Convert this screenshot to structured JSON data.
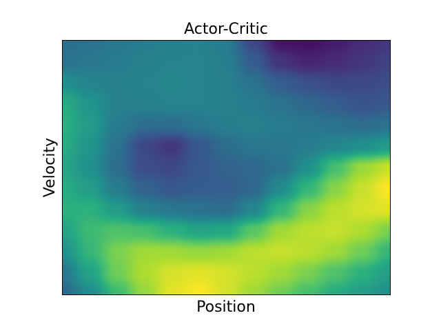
{
  "chart_data": {
    "type": "heatmap",
    "title": "Actor-Critic",
    "xlabel": "Position",
    "ylabel": "Velocity",
    "colormap": "viridis",
    "colorbar": false,
    "x_ticks": [],
    "y_ticks": [],
    "grid": false,
    "legend": "none",
    "value_range": [
      0,
      1
    ],
    "x_range": [
      0,
      1
    ],
    "y_range": [
      0,
      1
    ],
    "x": [
      0.0,
      0.0833,
      0.1667,
      0.25,
      0.3333,
      0.4167,
      0.5,
      0.5833,
      0.6667,
      0.75,
      0.8333,
      0.9167,
      1.0
    ],
    "y": [
      1.0,
      0.9167,
      0.8333,
      0.75,
      0.6667,
      0.5833,
      0.5,
      0.4167,
      0.3333,
      0.25,
      0.1667,
      0.0833,
      0.0
    ],
    "z": [
      [
        0.36,
        0.38,
        0.4,
        0.42,
        0.44,
        0.45,
        0.42,
        0.22,
        0.05,
        0.04,
        0.08,
        0.12,
        0.16
      ],
      [
        0.38,
        0.4,
        0.42,
        0.44,
        0.45,
        0.45,
        0.43,
        0.3,
        0.15,
        0.1,
        0.12,
        0.16,
        0.2
      ],
      [
        0.5,
        0.45,
        0.44,
        0.45,
        0.46,
        0.45,
        0.44,
        0.38,
        0.3,
        0.25,
        0.22,
        0.22,
        0.24
      ],
      [
        0.62,
        0.52,
        0.44,
        0.44,
        0.45,
        0.45,
        0.44,
        0.42,
        0.38,
        0.34,
        0.3,
        0.26,
        0.28
      ],
      [
        0.64,
        0.55,
        0.42,
        0.36,
        0.36,
        0.4,
        0.43,
        0.44,
        0.42,
        0.4,
        0.38,
        0.36,
        0.38
      ],
      [
        0.62,
        0.52,
        0.38,
        0.22,
        0.16,
        0.28,
        0.36,
        0.4,
        0.4,
        0.42,
        0.46,
        0.5,
        0.55
      ],
      [
        0.6,
        0.5,
        0.36,
        0.24,
        0.22,
        0.28,
        0.32,
        0.34,
        0.38,
        0.5,
        0.7,
        0.85,
        0.92
      ],
      [
        0.62,
        0.56,
        0.42,
        0.32,
        0.28,
        0.3,
        0.3,
        0.34,
        0.48,
        0.66,
        0.82,
        0.92,
        1.0
      ],
      [
        0.64,
        0.64,
        0.55,
        0.44,
        0.4,
        0.38,
        0.36,
        0.46,
        0.66,
        0.82,
        0.9,
        0.94,
        0.96
      ],
      [
        0.58,
        0.68,
        0.72,
        0.7,
        0.64,
        0.58,
        0.6,
        0.74,
        0.86,
        0.9,
        0.92,
        0.88,
        0.8
      ],
      [
        0.5,
        0.66,
        0.8,
        0.86,
        0.86,
        0.84,
        0.86,
        0.9,
        0.92,
        0.9,
        0.86,
        0.78,
        0.66
      ],
      [
        0.4,
        0.58,
        0.78,
        0.88,
        0.94,
        0.96,
        0.94,
        0.9,
        0.86,
        0.8,
        0.72,
        0.64,
        0.56
      ],
      [
        0.34,
        0.48,
        0.68,
        0.84,
        0.96,
        1.0,
        0.94,
        0.86,
        0.78,
        0.7,
        0.62,
        0.56,
        0.5
      ]
    ]
  }
}
